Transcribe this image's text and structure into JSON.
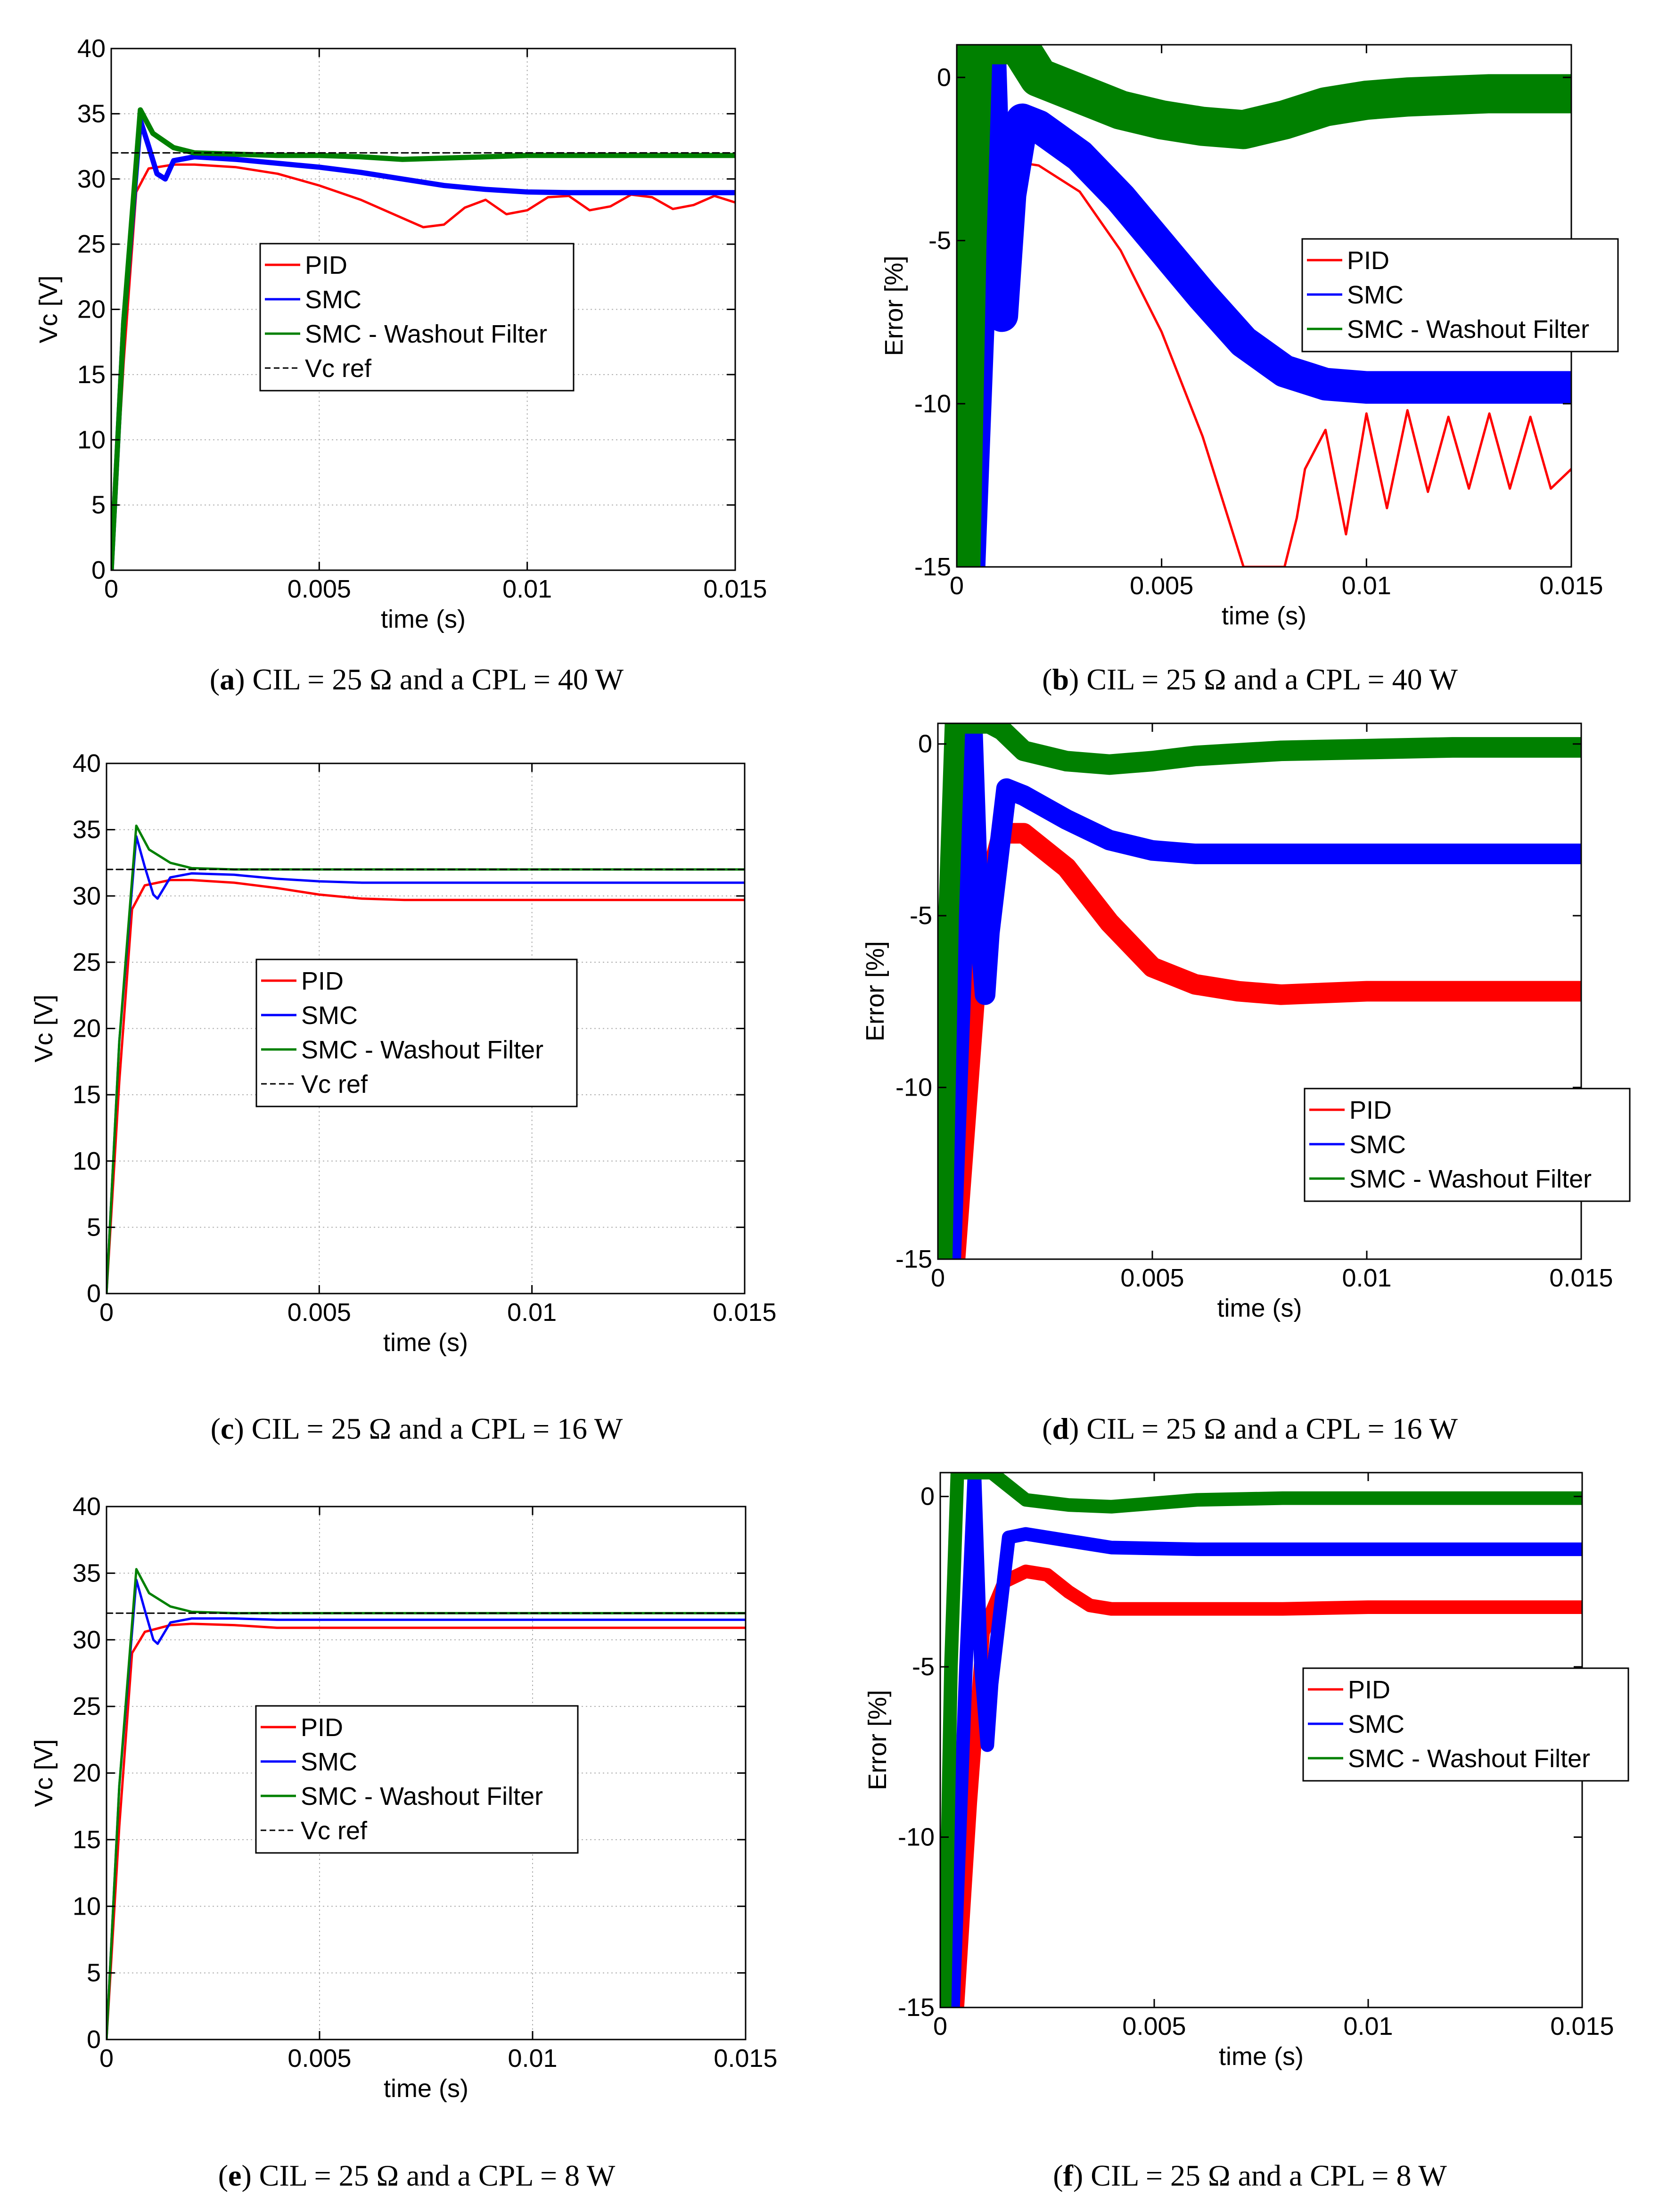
{
  "captions": [
    {
      "letter": "a",
      "text": " CIL = 25 Ω and a CPL = 40 W"
    },
    {
      "letter": "b",
      "text": " CIL = 25 Ω and a CPL = 40 W"
    },
    {
      "letter": "c",
      "text": " CIL = 25 Ω and a CPL = 16 W"
    },
    {
      "letter": "d",
      "text": " CIL = 25 Ω and a CPL = 16 W"
    },
    {
      "letter": "e",
      "text": " CIL = 25 Ω and a CPL = 8 W"
    },
    {
      "letter": "f",
      "text": " CIL = 25 Ω and a CPL = 8 W"
    }
  ],
  "colors": {
    "PID": "#ff0000",
    "SMC": "#0000ff",
    "SMC - Washout Filter": "#008000",
    "Vc ref": "#000000"
  },
  "chart_data": [
    {
      "id": "a",
      "type": "line",
      "xlabel": "time (s)",
      "ylabel": "Vc [V]",
      "xlim": [
        0,
        0.015
      ],
      "ylim": [
        0,
        40
      ],
      "xticks": [
        "0",
        "0.005",
        "0.01",
        "0.015"
      ],
      "yticks": [
        "0",
        "5",
        "10",
        "15",
        "20",
        "25",
        "30",
        "35",
        "40"
      ],
      "grid": true,
      "legend_position": "center-left",
      "legend": [
        "PID",
        "SMC",
        "SMC - Washout Filter",
        "Vc ref"
      ],
      "series": [
        {
          "name": "PID",
          "x": [
            0,
            0.0003,
            0.0006,
            0.0009,
            0.0015,
            0.002,
            0.003,
            0.004,
            0.005,
            0.006,
            0.007,
            0.0075,
            0.008,
            0.0085,
            0.009,
            0.0095,
            0.01,
            0.0105,
            0.011,
            0.0115,
            0.012,
            0.0125,
            0.013,
            0.0135,
            0.014,
            0.0145,
            0.015
          ],
          "y": [
            0,
            16,
            29,
            30.8,
            31.1,
            31.1,
            30.9,
            30.4,
            29.5,
            28.4,
            27,
            26.3,
            26.5,
            27.8,
            28.4,
            27.3,
            27.6,
            28.6,
            28.7,
            27.6,
            27.9,
            28.8,
            28.6,
            27.7,
            28,
            28.7,
            28.2
          ]
        },
        {
          "name": "SMC",
          "x": [
            0,
            0.0003,
            0.0007,
            0.0009,
            0.0011,
            0.0013,
            0.0015,
            0.002,
            0.003,
            0.004,
            0.005,
            0.006,
            0.007,
            0.008,
            0.009,
            0.01,
            0.011,
            0.012,
            0.013,
            0.014,
            0.015
          ],
          "y": [
            0,
            19,
            34.5,
            32.5,
            30.4,
            30,
            31.4,
            31.7,
            31.5,
            31.2,
            30.9,
            30.5,
            30,
            29.5,
            29.2,
            29,
            28.95,
            28.95,
            28.95,
            28.95,
            28.95
          ],
          "band": 0.2
        },
        {
          "name": "SMC - Washout Filter",
          "x": [
            0,
            0.0003,
            0.0007,
            0.001,
            0.0015,
            0.002,
            0.003,
            0.004,
            0.005,
            0.006,
            0.007,
            0.008,
            0.009,
            0.01,
            0.011,
            0.012,
            0.013,
            0.014,
            0.015
          ],
          "y": [
            0,
            19,
            35.3,
            33.5,
            32.4,
            32,
            31.9,
            31.8,
            31.8,
            31.7,
            31.5,
            31.6,
            31.7,
            31.8,
            31.8,
            31.8,
            31.8,
            31.8,
            31.8
          ],
          "band": 0.2
        },
        {
          "name": "Vc ref",
          "x": [
            -0.0005,
            0.015
          ],
          "y": [
            32,
            32
          ],
          "dashed": true
        }
      ]
    },
    {
      "id": "b",
      "type": "line",
      "xlabel": "time (s)",
      "ylabel": "Error [%]",
      "xlim": [
        0,
        0.015
      ],
      "ylim": [
        -15,
        1
      ],
      "xticks": [
        "0",
        "0.005",
        "0.01",
        "0.015"
      ],
      "yticks": [
        "0",
        "-5",
        "-10",
        "-15"
      ],
      "grid": false,
      "legend_position": "right",
      "legend": [
        "PID",
        "SMC",
        "SMC - Washout Filter"
      ],
      "series": [
        {
          "name": "PID",
          "x": [
            0.0004,
            0.0007,
            0.001,
            0.0015,
            0.002,
            0.003,
            0.004,
            0.005,
            0.006,
            0.0065,
            0.007,
            0.008,
            0.0083,
            0.0085,
            0.009,
            0.0095,
            0.01,
            0.0105,
            0.011,
            0.0115,
            0.012,
            0.0125,
            0.013,
            0.0135,
            0.014,
            0.0145,
            0.015
          ],
          "y": [
            -15,
            -10,
            -5,
            -2.6,
            -2.7,
            -3.5,
            -5.3,
            -7.8,
            -11,
            -13,
            -15,
            -15,
            -13.5,
            -12,
            -10.8,
            -14,
            -10.3,
            -13.2,
            -10.2,
            -12.7,
            -10.4,
            -12.6,
            -10.3,
            -12.6,
            -10.4,
            -12.6,
            -12
          ]
        },
        {
          "name": "SMC",
          "x": [
            0.0003,
            0.0006,
            0.0008,
            0.00095,
            0.0011,
            0.0013,
            0.0016,
            0.002,
            0.003,
            0.004,
            0.005,
            0.006,
            0.007,
            0.008,
            0.009,
            0.01,
            0.011,
            0.012,
            0.013,
            0.014,
            0.015
          ],
          "y": [
            -15,
            -5,
            1,
            -5,
            -7.3,
            -3.6,
            -1.3,
            -1.5,
            -2.4,
            -3.7,
            -5.2,
            -6.7,
            -8.1,
            -9,
            -9.4,
            -9.5,
            -9.5,
            -9.5,
            -9.5,
            -9.5,
            -9.5
          ],
          "band": 0.5
        },
        {
          "name": "SMC - Washout Filter",
          "x": [
            0.0001,
            0.00025,
            0.0004,
            0.0006,
            0.0008,
            0.0012,
            0.0015,
            0.002,
            0.003,
            0.004,
            0.005,
            0.006,
            0.007,
            0.008,
            0.009,
            0.01,
            0.011,
            0.012,
            0.013,
            0.014,
            0.015
          ],
          "y": [
            -15,
            -5,
            1,
            1,
            1,
            1,
            1,
            0,
            -0.5,
            -1,
            -1.3,
            -1.5,
            -1.6,
            -1.3,
            -0.9,
            -0.7,
            -0.6,
            -0.55,
            -0.5,
            -0.5,
            -0.5
          ],
          "band": 0.6
        }
      ]
    },
    {
      "id": "c",
      "type": "line",
      "xlabel": "time (s)",
      "ylabel": "Vc [V]",
      "xlim": [
        0,
        0.015
      ],
      "ylim": [
        0,
        40
      ],
      "xticks": [
        "0",
        "0.005",
        "0.01",
        "0.015"
      ],
      "yticks": [
        "0",
        "5",
        "10",
        "15",
        "20",
        "25",
        "30",
        "35",
        "40"
      ],
      "grid": true,
      "legend_position": "center-left",
      "legend": [
        "PID",
        "SMC",
        "SMC - Washout Filter",
        "Vc ref"
      ],
      "series": [
        {
          "name": "PID",
          "x": [
            0,
            0.0003,
            0.0006,
            0.0009,
            0.0015,
            0.002,
            0.003,
            0.004,
            0.005,
            0.006,
            0.007,
            0.008,
            0.009,
            0.01,
            0.012,
            0.015
          ],
          "y": [
            0,
            16,
            29,
            30.8,
            31.2,
            31.2,
            31,
            30.6,
            30.1,
            29.8,
            29.7,
            29.7,
            29.7,
            29.7,
            29.7,
            29.7
          ]
        },
        {
          "name": "SMC",
          "x": [
            0,
            0.0003,
            0.0007,
            0.0009,
            0.0011,
            0.0012,
            0.0015,
            0.002,
            0.003,
            0.004,
            0.005,
            0.006,
            0.008,
            0.01,
            0.015
          ],
          "y": [
            0,
            19,
            34.5,
            32.2,
            30.1,
            29.8,
            31.4,
            31.7,
            31.6,
            31.3,
            31.1,
            31,
            31,
            31,
            31
          ]
        },
        {
          "name": "SMC - Washout Filter",
          "x": [
            0,
            0.0003,
            0.0007,
            0.001,
            0.0015,
            0.002,
            0.003,
            0.004,
            0.005,
            0.006,
            0.008,
            0.01,
            0.015
          ],
          "y": [
            0,
            19,
            35.3,
            33.5,
            32.5,
            32.1,
            32,
            32,
            32,
            32,
            32,
            32,
            32
          ]
        },
        {
          "name": "Vc ref",
          "x": [
            -0.0005,
            0.015
          ],
          "y": [
            32,
            32
          ],
          "dashed": true
        }
      ]
    },
    {
      "id": "d",
      "type": "line",
      "xlabel": "time (s)",
      "ylabel": "Error [%]",
      "xlim": [
        0,
        0.015
      ],
      "ylim": [
        -15,
        0.6
      ],
      "xticks": [
        "0",
        "0.005",
        "0.01",
        "0.015"
      ],
      "yticks": [
        "0",
        "-5",
        "-10",
        "-15"
      ],
      "grid": false,
      "legend_position": "lower-right",
      "legend": [
        "PID",
        "SMC",
        "SMC - Washout Filter"
      ],
      "series": [
        {
          "name": "PID",
          "x": [
            0.0004,
            0.0007,
            0.001,
            0.0015,
            0.002,
            0.003,
            0.004,
            0.005,
            0.006,
            0.007,
            0.008,
            0.009,
            0.01,
            0.012,
            0.015
          ],
          "y": [
            -15,
            -10,
            -5,
            -2.6,
            -2.6,
            -3.6,
            -5.2,
            -6.5,
            -7,
            -7.2,
            -7.3,
            -7.25,
            -7.2,
            -7.2,
            -7.2
          ],
          "band": 0.3
        },
        {
          "name": "SMC",
          "x": [
            0.0003,
            0.0006,
            0.0008,
            0.00095,
            0.0011,
            0.0012,
            0.0016,
            0.002,
            0.003,
            0.004,
            0.005,
            0.006,
            0.008,
            0.01,
            0.015
          ],
          "y": [
            -15,
            -5,
            0.6,
            -5,
            -7.3,
            -5.5,
            -1.3,
            -1.5,
            -2.2,
            -2.8,
            -3.1,
            -3.2,
            -3.2,
            -3.2,
            -3.2
          ],
          "band": 0.3
        },
        {
          "name": "SMC - Washout Filter",
          "x": [
            0.0001,
            0.00025,
            0.0004,
            0.0006,
            0.0012,
            0.0015,
            0.002,
            0.003,
            0.004,
            0.005,
            0.006,
            0.008,
            0.01,
            0.012,
            0.015
          ],
          "y": [
            -15,
            -5,
            0.6,
            0.6,
            0.6,
            0.4,
            -0.2,
            -0.5,
            -0.6,
            -0.5,
            -0.35,
            -0.2,
            -0.15,
            -0.1,
            -0.1
          ],
          "band": 0.3
        }
      ]
    },
    {
      "id": "e",
      "type": "line",
      "xlabel": "time (s)",
      "ylabel": "Vc [V]",
      "xlim": [
        0,
        0.015
      ],
      "ylim": [
        0,
        40
      ],
      "xticks": [
        "0",
        "0.005",
        "0.01",
        "0.015"
      ],
      "yticks": [
        "0",
        "5",
        "10",
        "15",
        "20",
        "25",
        "30",
        "35",
        "40"
      ],
      "grid": true,
      "legend_position": "center-left",
      "legend": [
        "PID",
        "SMC",
        "SMC - Washout Filter",
        "Vc ref"
      ],
      "series": [
        {
          "name": "PID",
          "x": [
            0,
            0.0003,
            0.0006,
            0.0009,
            0.0015,
            0.002,
            0.003,
            0.004,
            0.005,
            0.006,
            0.008,
            0.01,
            0.015
          ],
          "y": [
            0,
            16,
            29,
            30.6,
            31.1,
            31.2,
            31.1,
            30.9,
            30.9,
            30.9,
            30.9,
            30.9,
            30.9
          ]
        },
        {
          "name": "SMC",
          "x": [
            0,
            0.0003,
            0.0007,
            0.0009,
            0.0011,
            0.0012,
            0.0015,
            0.002,
            0.003,
            0.004,
            0.006,
            0.01,
            0.015
          ],
          "y": [
            0,
            19,
            34.5,
            32.2,
            30,
            29.7,
            31.3,
            31.6,
            31.6,
            31.5,
            31.5,
            31.5,
            31.5
          ]
        },
        {
          "name": "SMC - Washout Filter",
          "x": [
            0,
            0.0003,
            0.0007,
            0.001,
            0.0015,
            0.002,
            0.003,
            0.004,
            0.006,
            0.01,
            0.015
          ],
          "y": [
            0,
            19,
            35.3,
            33.5,
            32.5,
            32.1,
            32,
            32,
            32,
            32,
            32
          ]
        },
        {
          "name": "Vc ref",
          "x": [
            -0.0005,
            0.015
          ],
          "y": [
            32,
            32
          ],
          "dashed": true
        }
      ]
    },
    {
      "id": "f",
      "type": "line",
      "xlabel": "time (s)",
      "ylabel": "Error [%]",
      "xlim": [
        0,
        0.015
      ],
      "ylim": [
        -15,
        0.7
      ],
      "xticks": [
        "0",
        "0.005",
        "0.01",
        "0.015"
      ],
      "yticks": [
        "0",
        "-5",
        "-10",
        "-15"
      ],
      "grid": false,
      "legend_position": "right",
      "legend": [
        "PID",
        "SMC",
        "SMC - Washout Filter"
      ],
      "series": [
        {
          "name": "PID",
          "x": [
            0.0004,
            0.0007,
            0.001,
            0.0015,
            0.002,
            0.0025,
            0.003,
            0.0035,
            0.004,
            0.005,
            0.006,
            0.008,
            0.01,
            0.015
          ],
          "y": [
            -15,
            -9,
            -4,
            -2.5,
            -2.2,
            -2.3,
            -2.8,
            -3.2,
            -3.3,
            -3.3,
            -3.3,
            -3.3,
            -3.25,
            -3.25
          ],
          "band": 0.2
        },
        {
          "name": "SMC",
          "x": [
            0.0003,
            0.0006,
            0.0008,
            0.00095,
            0.0011,
            0.0012,
            0.0016,
            0.002,
            0.003,
            0.004,
            0.006,
            0.01,
            0.015
          ],
          "y": [
            -15,
            -5,
            0.7,
            -5,
            -7.3,
            -5.5,
            -1.2,
            -1.1,
            -1.3,
            -1.5,
            -1.55,
            -1.55,
            -1.55
          ],
          "band": 0.2
        },
        {
          "name": "SMC - Washout Filter",
          "x": [
            0.0001,
            0.00025,
            0.0004,
            0.0006,
            0.0012,
            0.0015,
            0.002,
            0.003,
            0.004,
            0.005,
            0.006,
            0.008,
            0.01,
            0.015
          ],
          "y": [
            -15,
            -5,
            0.7,
            0.7,
            0.7,
            0.4,
            -0.1,
            -0.25,
            -0.3,
            -0.2,
            -0.1,
            -0.05,
            -0.05,
            -0.05
          ],
          "band": 0.2
        }
      ]
    }
  ]
}
